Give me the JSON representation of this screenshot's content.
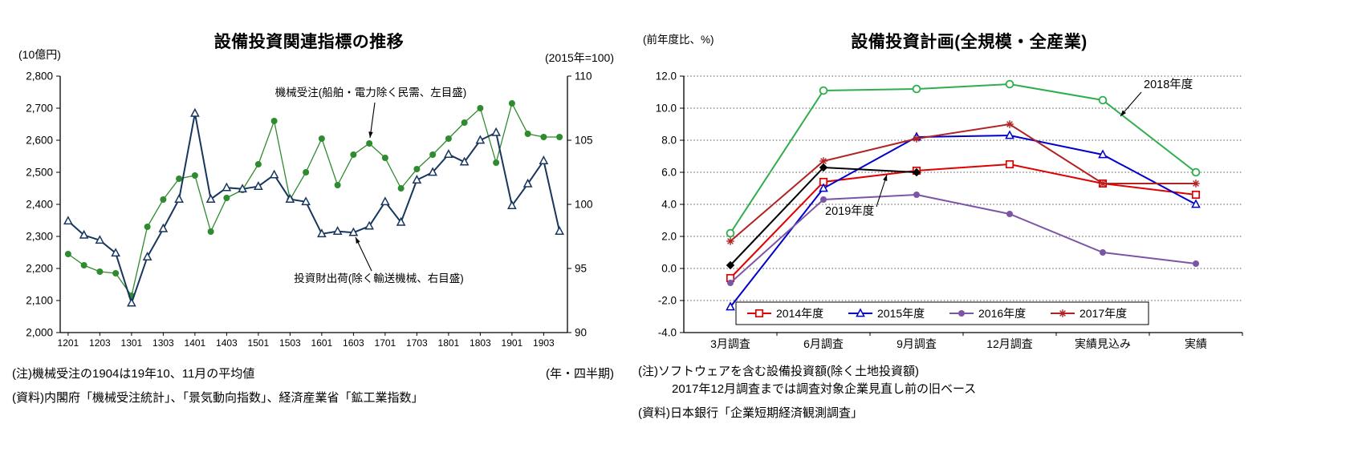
{
  "left": {
    "title": "設備投資関連指標の推移",
    "unit_left": "(10億円)",
    "unit_right": "(2015年=100)",
    "axis_caption": "(年・四半期)",
    "note": "(注)機械受注の1904は19年10、11月の平均値",
    "source": "(資料)内閣府「機械受注統計」、「景気動向指数」、経済産業省「鉱工業指数」"
  },
  "right": {
    "title": "設備投資計画(全規模・全産業)",
    "unit": "(前年度比、%)",
    "note1": "(注)ソフトウェアを含む設備投資額(除く土地投資額)",
    "note2": "2017年12月調査までは調査対象企業見直し前の旧ベース",
    "source": "(資料)日本銀行「企業短期経済観測調査」"
  },
  "chart_data": [
    {
      "type": "line",
      "title": "設備投資関連指標の推移",
      "xlabel": "(年・四半期)",
      "ylim_left": [
        2000,
        2800
      ],
      "ylim_right": [
        90,
        110
      ],
      "ytick_left_step": 100,
      "ytick_right_step": 5,
      "grid": false,
      "x": [
        "1201",
        "1202",
        "1203",
        "1204",
        "1301",
        "1302",
        "1303",
        "1304",
        "1401",
        "1402",
        "1403",
        "1404",
        "1501",
        "1502",
        "1503",
        "1504",
        "1601",
        "1602",
        "1603",
        "1604",
        "1701",
        "1702",
        "1703",
        "1704",
        "1801",
        "1802",
        "1803",
        "1804",
        "1901",
        "1902",
        "1903",
        "1904"
      ],
      "x_labels_shown_every": 2,
      "series": [
        {
          "name": "機械受注(船舶・電力除く民需、左目盛)",
          "axis": "left",
          "unit": "10億円",
          "color": "#2e8b2e",
          "marker": "circle",
          "width": 1.3,
          "values": [
            2245,
            2210,
            2190,
            2185,
            2115,
            2330,
            2415,
            2480,
            2490,
            2315,
            2420,
            2445,
            2525,
            2660,
            2415,
            2500,
            2605,
            2460,
            2555,
            2590,
            2545,
            2450,
            2510,
            2555,
            2605,
            2655,
            2700,
            2530,
            2715,
            2620,
            2610,
            2610
          ]
        },
        {
          "name": "投資財出荷(除く輸送機械、右目盛)",
          "axis": "right",
          "unit": "2015年=100",
          "color": "#17365d",
          "marker": "triangle-open",
          "width": 2,
          "values": [
            98.7,
            97.6,
            97.2,
            96.2,
            92.3,
            95.9,
            98.1,
            100.4,
            107.1,
            100.4,
            101.3,
            101.2,
            101.4,
            102.3,
            100.4,
            100.2,
            97.7,
            97.9,
            97.8,
            98.3,
            100.2,
            98.6,
            101.9,
            102.5,
            103.9,
            103.3,
            105.0,
            105.6,
            99.9,
            101.6,
            103.4,
            97.9
          ]
        }
      ],
      "annotations": [
        "機械受注(船舶・電力除く民需、左目盛)",
        "投資財出荷(除く輸送機械、右目盛)"
      ]
    },
    {
      "type": "line",
      "title": "設備投資計画(全規模・全産業)",
      "ylabel": "(前年度比、%)",
      "ylim": [
        -4,
        12
      ],
      "ytick_step": 2,
      "grid": true,
      "legend_position": "bottom-inside",
      "categories": [
        "3月調査",
        "6月調査",
        "9月調査",
        "12月調査",
        "実績見込み",
        "実績"
      ],
      "series": [
        {
          "name": "2014年度",
          "color": "#e00000",
          "marker": "square-open",
          "legend": true,
          "values": [
            -0.6,
            5.4,
            6.1,
            6.5,
            5.3,
            4.6
          ]
        },
        {
          "name": "2015年度",
          "color": "#0000cc",
          "marker": "triangle-open",
          "legend": true,
          "values": [
            -2.4,
            5.0,
            8.2,
            8.3,
            7.1,
            4.0
          ]
        },
        {
          "name": "2016年度",
          "color": "#7d55a5",
          "marker": "circle",
          "legend": true,
          "values": [
            -0.9,
            4.3,
            4.6,
            3.4,
            1.0,
            0.3
          ]
        },
        {
          "name": "2017年度",
          "color": "#b22222",
          "marker": "asterisk",
          "legend": true,
          "values": [
            1.7,
            6.7,
            8.1,
            9.0,
            5.3,
            5.3
          ]
        },
        {
          "name": "2018年度",
          "color": "#2fae4e",
          "marker": "circle-open",
          "legend": false,
          "values": [
            2.2,
            11.1,
            11.2,
            11.5,
            10.5,
            6.0
          ]
        },
        {
          "name": "2019年度",
          "color": "#000000",
          "marker": "diamond",
          "legend": false,
          "values": [
            0.2,
            6.3,
            6.0,
            null,
            null,
            null
          ]
        }
      ],
      "annotations": [
        "2018年度",
        "2019年度"
      ]
    }
  ]
}
